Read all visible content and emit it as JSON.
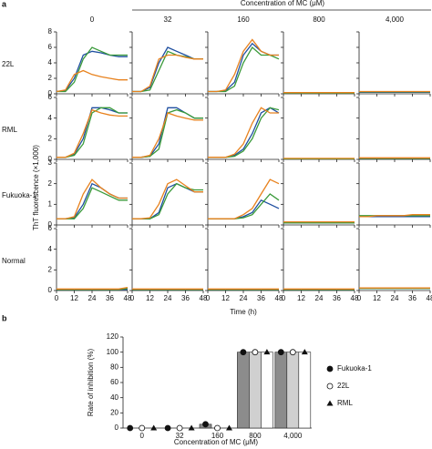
{
  "chart_data": [
    {
      "type": "line",
      "label": "a",
      "header": "Concentration of MC (μM)",
      "columns": [
        "0",
        "32",
        "160",
        "800",
        {
          "value": 4000,
          "label": "4,000"
        }
      ],
      "xlabel": "Time (h)",
      "ylabel": "ThT fluorescence (×1,000)",
      "x": [
        0,
        6,
        12,
        18,
        24,
        30,
        36,
        42,
        48
      ],
      "xlim": [
        0,
        48
      ],
      "xticks": [
        0,
        12,
        24,
        36,
        48
      ],
      "series_colors": [
        "#1f4fa0",
        "#3a9a3a",
        "#e8821e"
      ],
      "rows": [
        {
          "name": "22L",
          "ylim": [
            0,
            8
          ],
          "yticks": [
            0,
            2,
            4,
            6,
            8
          ],
          "panels": [
            [
              [
                0.3,
                0.4,
                2,
                5,
                5.5,
                5.3,
                5,
                4.8,
                4.8
              ],
              [
                0.3,
                0.3,
                1.5,
                4.5,
                6,
                5.5,
                5,
                5,
                5
              ],
              [
                0.3,
                0.5,
                2.5,
                3,
                2.5,
                2.2,
                2,
                1.8,
                1.8
              ]
            ],
            [
              [
                0.3,
                0.3,
                0.8,
                4,
                6,
                5.5,
                5,
                4.5,
                4.5
              ],
              [
                0.3,
                0.3,
                0.5,
                3,
                5.5,
                5,
                4.8,
                4.5,
                4.5
              ],
              [
                0.3,
                0.3,
                1,
                4.5,
                5,
                5,
                4.7,
                4.5,
                4.5
              ]
            ],
            [
              [
                0.3,
                0.3,
                0.4,
                1.5,
                5,
                6.5,
                5.5,
                5,
                5
              ],
              [
                0.3,
                0.3,
                0.3,
                1,
                4,
                6,
                5,
                5,
                4.5
              ],
              [
                0.3,
                0.3,
                0.5,
                2.5,
                5.5,
                7,
                5.5,
                5,
                5
              ]
            ],
            [
              [
                0.1,
                0.1,
                0.1,
                0.1,
                0.1,
                0.1,
                0.1,
                0.1,
                0.1
              ],
              [
                0.1,
                0.1,
                0.1,
                0.1,
                0.1,
                0.1,
                0.1,
                0.1,
                0.1
              ],
              [
                0.15,
                0.15,
                0.15,
                0.15,
                0.15,
                0.15,
                0.15,
                0.15,
                0.15
              ]
            ],
            [
              [
                0.2,
                0.2,
                0.2,
                0.2,
                0.2,
                0.2,
                0.2,
                0.2,
                0.2
              ],
              [
                0.25,
                0.25,
                0.25,
                0.25,
                0.25,
                0.25,
                0.25,
                0.25,
                0.25
              ],
              [
                0.3,
                0.3,
                0.3,
                0.3,
                0.3,
                0.3,
                0.3,
                0.3,
                0.3
              ]
            ]
          ]
        },
        {
          "name": "RML",
          "ylim": [
            0,
            6
          ],
          "yticks": [
            0,
            2,
            4,
            6
          ],
          "panels": [
            [
              [
                0.2,
                0.2,
                0.5,
                2,
                5,
                5,
                4.8,
                4.5,
                4.5
              ],
              [
                0.2,
                0.2,
                0.4,
                1.5,
                4.5,
                5,
                5,
                4.5,
                4.5
              ],
              [
                0.2,
                0.2,
                0.6,
                2.5,
                4.8,
                4.5,
                4.3,
                4.2,
                4.2
              ]
            ],
            [
              [
                0.2,
                0.2,
                0.3,
                1.5,
                5,
                5,
                4.5,
                4,
                4
              ],
              [
                0.2,
                0.2,
                0.3,
                1,
                4.5,
                4.8,
                4.5,
                4,
                4
              ],
              [
                0.2,
                0.2,
                0.4,
                2,
                4.5,
                4.2,
                4,
                3.8,
                3.8
              ]
            ],
            [
              [
                0.2,
                0.2,
                0.2,
                0.4,
                1,
                2.5,
                4.5,
                5,
                4.5
              ],
              [
                0.2,
                0.2,
                0.2,
                0.3,
                0.8,
                2,
                4,
                5,
                4.8
              ],
              [
                0.2,
                0.2,
                0.2,
                0.5,
                1.5,
                3.5,
                5,
                4.5,
                4.5
              ]
            ],
            [
              [
                0.05,
                0.05,
                0.05,
                0.05,
                0.05,
                0.05,
                0.05,
                0.05,
                0.05
              ],
              [
                0.05,
                0.05,
                0.05,
                0.05,
                0.05,
                0.05,
                0.05,
                0.05,
                0.05
              ],
              [
                0.1,
                0.1,
                0.1,
                0.1,
                0.1,
                0.1,
                0.1,
                0.1,
                0.1
              ]
            ],
            [
              [
                0.1,
                0.1,
                0.1,
                0.1,
                0.1,
                0.1,
                0.1,
                0.1,
                0.1
              ],
              [
                0.1,
                0.1,
                0.1,
                0.1,
                0.1,
                0.1,
                0.1,
                0.1,
                0.1
              ],
              [
                0.15,
                0.15,
                0.15,
                0.15,
                0.15,
                0.15,
                0.15,
                0.15,
                0.15
              ]
            ]
          ]
        },
        {
          "name": "Fukuoka-1",
          "ylim": [
            0,
            3
          ],
          "yticks": [
            0,
            1,
            2,
            3
          ],
          "panels": [
            [
              [
                0.3,
                0.3,
                0.35,
                1,
                2,
                1.8,
                1.5,
                1.3,
                1.3
              ],
              [
                0.3,
                0.3,
                0.3,
                0.8,
                1.8,
                1.6,
                1.4,
                1.2,
                1.2
              ],
              [
                0.3,
                0.3,
                0.4,
                1.5,
                2.2,
                1.8,
                1.5,
                1.3,
                1.3
              ]
            ],
            [
              [
                0.3,
                0.3,
                0.3,
                0.6,
                1.8,
                2,
                1.8,
                1.6,
                1.6
              ],
              [
                0.3,
                0.3,
                0.3,
                0.5,
                1.5,
                2,
                1.8,
                1.7,
                1.7
              ],
              [
                0.3,
                0.3,
                0.35,
                1,
                2,
                2.2,
                1.9,
                1.6,
                1.6
              ]
            ],
            [
              [
                0.3,
                0.3,
                0.3,
                0.3,
                0.4,
                0.6,
                1.2,
                1,
                0.8
              ],
              [
                0.3,
                0.3,
                0.3,
                0.3,
                0.35,
                0.5,
                1,
                1.5,
                1.2
              ],
              [
                0.3,
                0.3,
                0.3,
                0.3,
                0.5,
                0.8,
                1.5,
                2.2,
                2
              ]
            ],
            [
              [
                0.1,
                0.1,
                0.1,
                0.1,
                0.1,
                0.1,
                0.1,
                0.1,
                0.1
              ],
              [
                0.1,
                0.1,
                0.1,
                0.1,
                0.1,
                0.1,
                0.1,
                0.1,
                0.1
              ],
              [
                0.15,
                0.15,
                0.15,
                0.15,
                0.15,
                0.15,
                0.15,
                0.15,
                0.15
              ]
            ],
            [
              [
                0.4,
                0.4,
                0.4,
                0.4,
                0.4,
                0.4,
                0.4,
                0.4,
                0.4
              ],
              [
                0.45,
                0.45,
                0.45,
                0.45,
                0.45,
                0.45,
                0.45,
                0.45,
                0.45
              ],
              [
                0.4,
                0.4,
                0.45,
                0.45,
                0.45,
                0.45,
                0.5,
                0.5,
                0.5
              ]
            ]
          ]
        },
        {
          "name": "Normal",
          "ylim": [
            0,
            6
          ],
          "yticks": [
            0,
            2,
            4,
            6
          ],
          "panels": [
            [
              [
                0.1,
                0.1,
                0.1,
                0.1,
                0.1,
                0.1,
                0.1,
                0.1,
                0.1
              ],
              [
                0.1,
                0.1,
                0.1,
                0.1,
                0.1,
                0.1,
                0.1,
                0.1,
                0.2
              ],
              [
                0.15,
                0.15,
                0.15,
                0.15,
                0.15,
                0.15,
                0.15,
                0.15,
                0.3
              ]
            ],
            [
              [
                0.1,
                0.1,
                0.1,
                0.1,
                0.1,
                0.1,
                0.1,
                0.1,
                0.1
              ],
              [
                0.1,
                0.1,
                0.1,
                0.1,
                0.1,
                0.1,
                0.1,
                0.1,
                0.1
              ],
              [
                0.15,
                0.15,
                0.15,
                0.15,
                0.15,
                0.15,
                0.15,
                0.15,
                0.15
              ]
            ],
            [
              [
                0.1,
                0.1,
                0.1,
                0.1,
                0.1,
                0.1,
                0.1,
                0.1,
                0.1
              ],
              [
                0.1,
                0.1,
                0.1,
                0.1,
                0.1,
                0.1,
                0.1,
                0.1,
                0.1
              ],
              [
                0.15,
                0.15,
                0.15,
                0.15,
                0.15,
                0.15,
                0.15,
                0.15,
                0.15
              ]
            ],
            [
              [
                0.1,
                0.1,
                0.1,
                0.1,
                0.1,
                0.1,
                0.1,
                0.1,
                0.1
              ],
              [
                0.1,
                0.1,
                0.1,
                0.1,
                0.1,
                0.1,
                0.1,
                0.1,
                0.1
              ],
              [
                0.15,
                0.15,
                0.15,
                0.15,
                0.15,
                0.15,
                0.15,
                0.15,
                0.15
              ]
            ],
            [
              [
                0.2,
                0.2,
                0.2,
                0.2,
                0.2,
                0.2,
                0.2,
                0.2,
                0.2
              ],
              [
                0.2,
                0.2,
                0.2,
                0.2,
                0.2,
                0.2,
                0.2,
                0.2,
                0.2
              ],
              [
                0.25,
                0.25,
                0.25,
                0.25,
                0.25,
                0.25,
                0.25,
                0.25,
                0.25
              ]
            ]
          ]
        }
      ]
    },
    {
      "type": "bar",
      "label": "b",
      "ylabel": "Rate of inhibition (%)",
      "xlabel": "Concentration of MC (μM)",
      "categories": [
        "0",
        "32",
        "160",
        "800",
        "4,000"
      ],
      "ylim": [
        0,
        120
      ],
      "yticks": [
        0,
        20,
        40,
        60,
        80,
        100,
        120
      ],
      "series": [
        {
          "name": "Fukuoka-1",
          "color": "#8c8c8c",
          "marker": "filled-circle",
          "values": [
            0,
            0,
            5,
            100,
            100
          ]
        },
        {
          "name": "22L",
          "color": "#d0d0d0",
          "marker": "open-circle",
          "values": [
            0,
            0,
            0,
            100,
            100
          ]
        },
        {
          "name": "RML",
          "color": "#ffffff",
          "marker": "triangle",
          "values": [
            0,
            0,
            0,
            100,
            100
          ]
        }
      ]
    }
  ]
}
